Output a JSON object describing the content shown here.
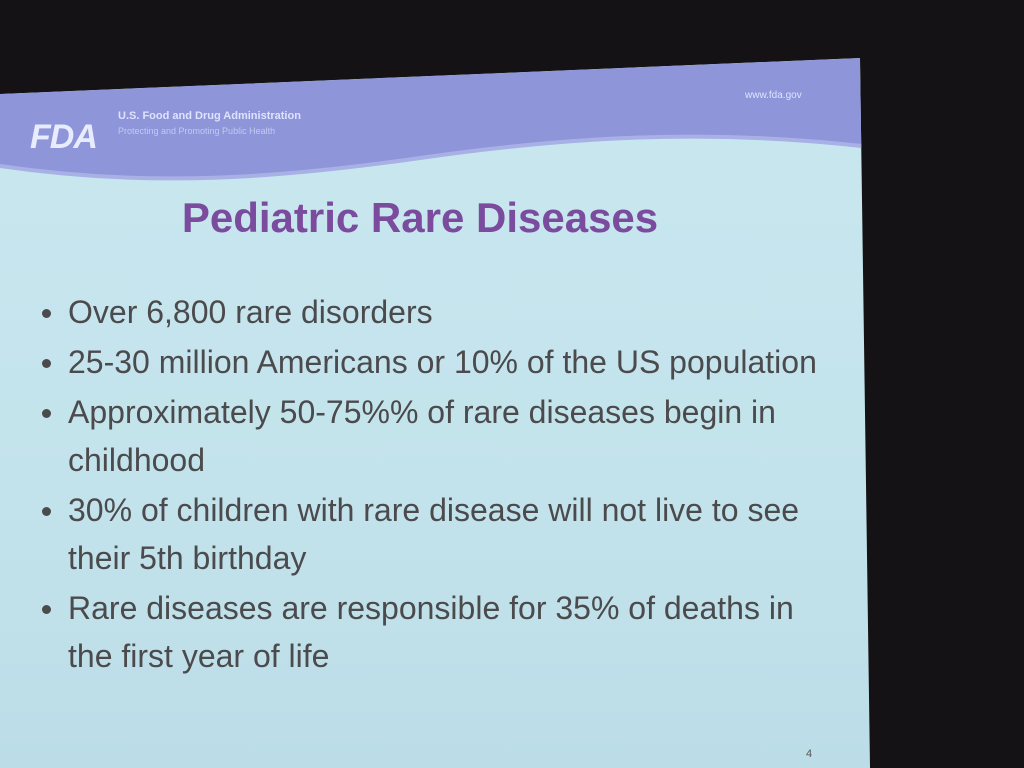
{
  "header": {
    "logo": "FDA",
    "organization": "U.S. Food and Drug Administration",
    "tagline": "Protecting and Promoting Public Health",
    "url": "www.fda.gov"
  },
  "title": "Pediatric Rare Diseases",
  "bullets": [
    "Over 6,800 rare disorders",
    "25-30 million Americans or 10% of the US population",
    "Approximately 50-75%% of rare diseases begin in childhood",
    "30% of children with rare disease will not live to see their 5th birthday",
    "Rare diseases are responsible for 35% of deaths in the first year of life"
  ],
  "page_number": "4"
}
